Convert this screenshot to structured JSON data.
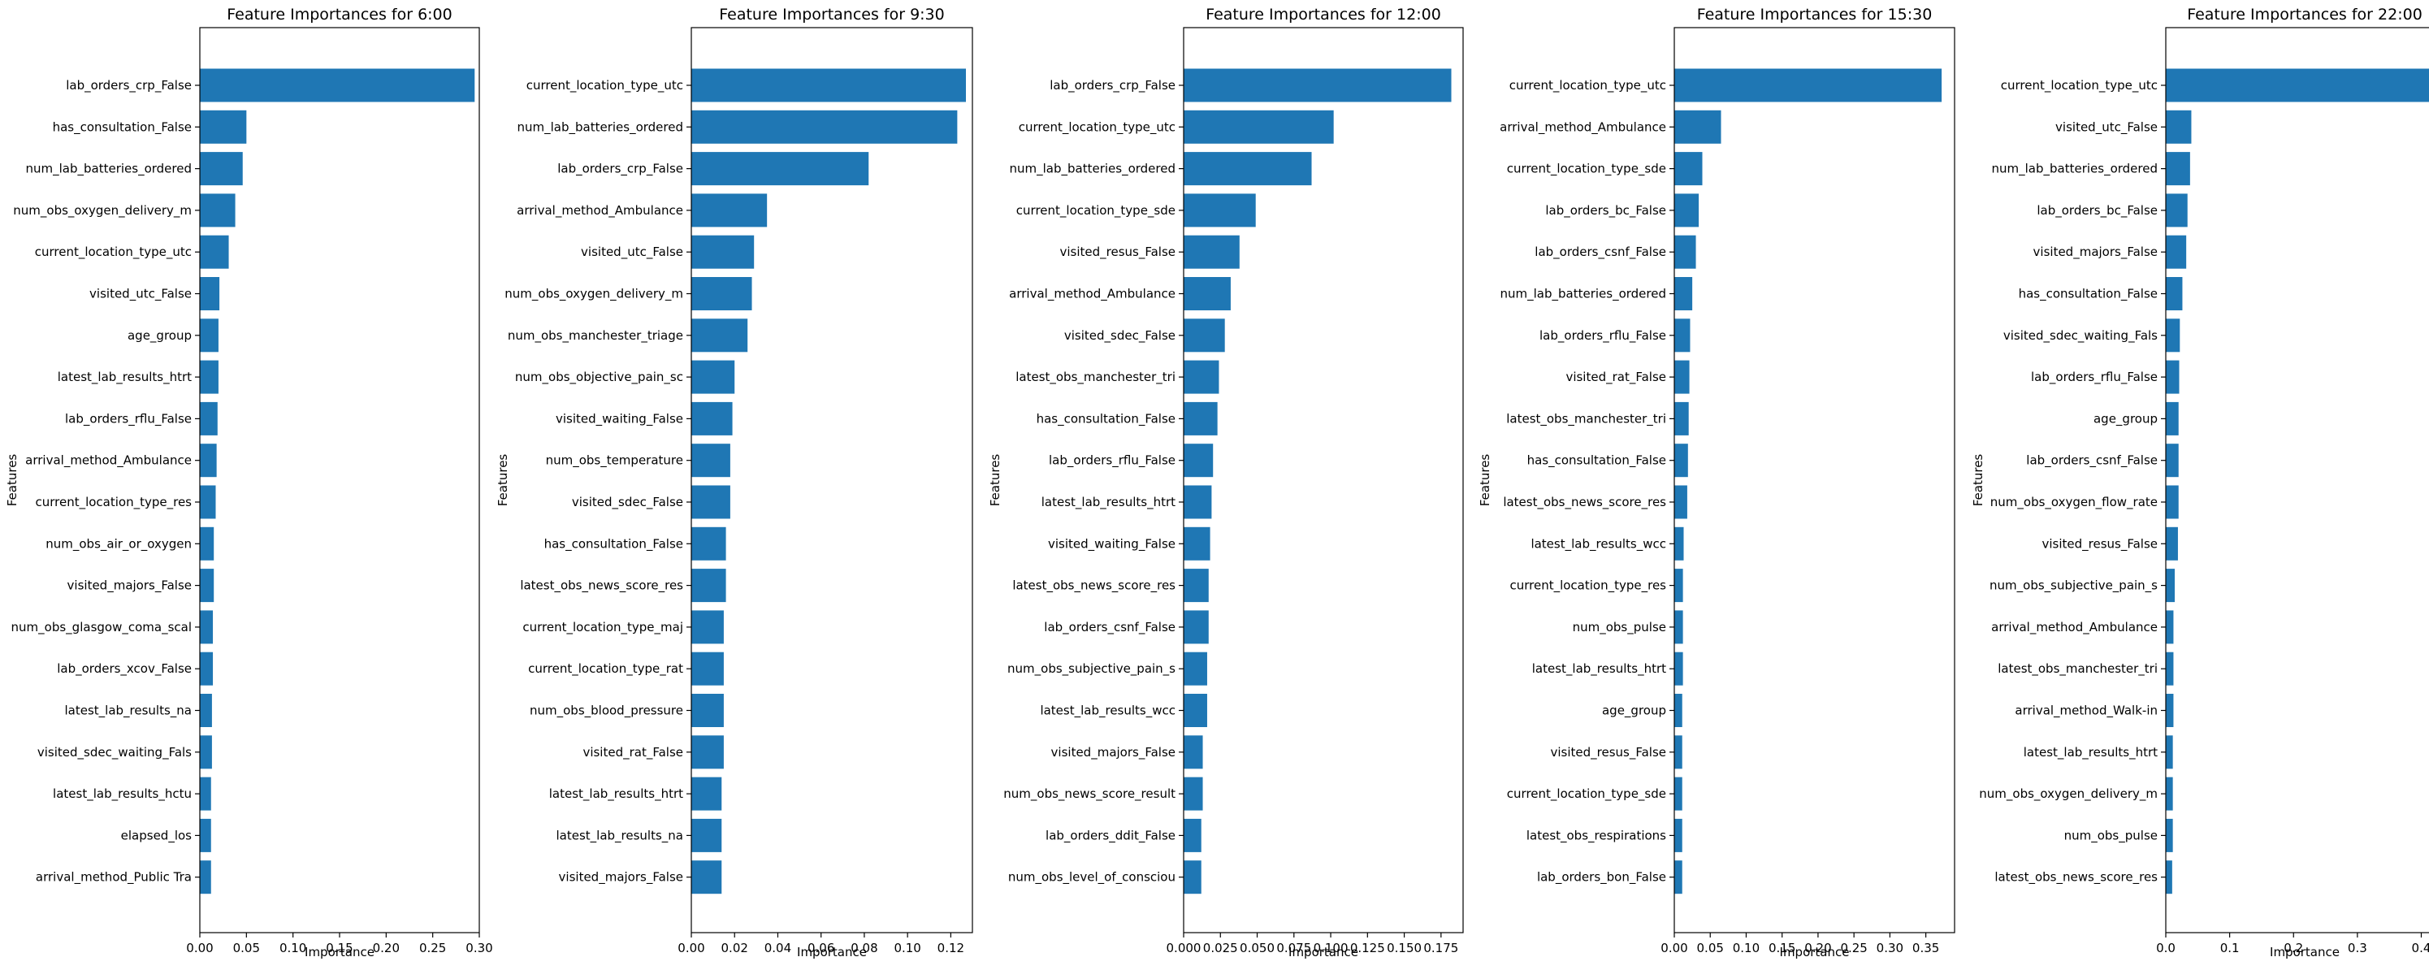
{
  "chart_data": [
    {
      "type": "bar",
      "orientation": "horizontal",
      "title": "Feature Importances for 6:00",
      "xlabel": "Importance",
      "ylabel": "Features",
      "xlim": [
        0,
        0.3
      ],
      "xticks": [
        0.0,
        0.05,
        0.1,
        0.15,
        0.2,
        0.25,
        0.3
      ],
      "xtick_labels": [
        "0.00",
        "0.05",
        "0.10",
        "0.15",
        "0.20",
        "0.25",
        "0.30"
      ],
      "color": "#1f77b4",
      "categories": [
        "lab_orders_crp_False",
        "has_consultation_False",
        "num_lab_batteries_ordered",
        "num_obs_oxygen_delivery_m",
        "current_location_type_utc",
        "visited_utc_False",
        "age_group",
        "latest_lab_results_htrt",
        "lab_orders_rflu_False",
        "arrival_method_Ambulance",
        "current_location_type_res",
        "num_obs_air_or_oxygen",
        "visited_majors_False",
        "num_obs_glasgow_coma_scal",
        "lab_orders_xcov_False",
        "latest_lab_results_na",
        "visited_sdec_waiting_Fals",
        "latest_lab_results_hctu",
        "elapsed_los",
        "arrival_method_Public Tra"
      ],
      "values": [
        0.295,
        0.05,
        0.046,
        0.038,
        0.031,
        0.021,
        0.02,
        0.02,
        0.019,
        0.018,
        0.017,
        0.015,
        0.015,
        0.014,
        0.014,
        0.013,
        0.013,
        0.012,
        0.012,
        0.012
      ]
    },
    {
      "type": "bar",
      "orientation": "horizontal",
      "title": "Feature Importances for 9:30",
      "xlabel": "Importance",
      "ylabel": "Features",
      "xlim": [
        0,
        0.13
      ],
      "xticks": [
        0.0,
        0.02,
        0.04,
        0.06,
        0.08,
        0.1,
        0.12
      ],
      "xtick_labels": [
        "0.00",
        "0.02",
        "0.04",
        "0.06",
        "0.08",
        "0.10",
        "0.12"
      ],
      "color": "#1f77b4",
      "categories": [
        "current_location_type_utc",
        "num_lab_batteries_ordered",
        "lab_orders_crp_False",
        "arrival_method_Ambulance",
        "visited_utc_False",
        "num_obs_oxygen_delivery_m",
        "num_obs_manchester_triage",
        "num_obs_objective_pain_sc",
        "visited_waiting_False",
        "num_obs_temperature",
        "visited_sdec_False",
        "has_consultation_False",
        "latest_obs_news_score_res",
        "current_location_type_maj",
        "current_location_type_rat",
        "num_obs_blood_pressure",
        "visited_rat_False",
        "latest_lab_results_htrt",
        "latest_lab_results_na",
        "visited_majors_False"
      ],
      "values": [
        0.127,
        0.123,
        0.082,
        0.035,
        0.029,
        0.028,
        0.026,
        0.02,
        0.019,
        0.018,
        0.018,
        0.016,
        0.016,
        0.015,
        0.015,
        0.015,
        0.015,
        0.014,
        0.014,
        0.014
      ]
    },
    {
      "type": "bar",
      "orientation": "horizontal",
      "title": "Feature Importances for 12:00",
      "xlabel": "Importance",
      "ylabel": "Features",
      "xlim": [
        0,
        0.19
      ],
      "xticks": [
        0.0,
        0.025,
        0.05,
        0.075,
        0.1,
        0.125,
        0.15,
        0.175
      ],
      "xtick_labels": [
        "0.000",
        "0.025",
        "0.050",
        "0.075",
        "0.100",
        "0.125",
        "0.150",
        "0.175"
      ],
      "color": "#1f77b4",
      "categories": [
        "lab_orders_crp_False",
        "current_location_type_utc",
        "num_lab_batteries_ordered",
        "current_location_type_sde",
        "visited_resus_False",
        "arrival_method_Ambulance",
        "visited_sdec_False",
        "latest_obs_manchester_tri",
        "has_consultation_False",
        "lab_orders_rflu_False",
        "latest_lab_results_htrt",
        "visited_waiting_False",
        "latest_obs_news_score_res",
        "lab_orders_csnf_False",
        "num_obs_subjective_pain_s",
        "latest_lab_results_wcc",
        "visited_majors_False",
        "num_obs_news_score_result",
        "lab_orders_ddit_False",
        "num_obs_level_of_consciou"
      ],
      "values": [
        0.182,
        0.102,
        0.087,
        0.049,
        0.038,
        0.032,
        0.028,
        0.024,
        0.023,
        0.02,
        0.019,
        0.018,
        0.017,
        0.017,
        0.016,
        0.016,
        0.013,
        0.013,
        0.012,
        0.012
      ]
    },
    {
      "type": "bar",
      "orientation": "horizontal",
      "title": "Feature Importances for 15:30",
      "xlabel": "Importance",
      "ylabel": "Features",
      "xlim": [
        0,
        0.39
      ],
      "xticks": [
        0.0,
        0.05,
        0.1,
        0.15,
        0.2,
        0.25,
        0.3,
        0.35
      ],
      "xtick_labels": [
        "0.00",
        "0.05",
        "0.10",
        "0.15",
        "0.20",
        "0.25",
        "0.30",
        "0.35"
      ],
      "color": "#1f77b4",
      "categories": [
        "current_location_type_utc",
        "arrival_method_Ambulance",
        "current_location_type_sde",
        "lab_orders_bc_False",
        "lab_orders_csnf_False",
        "num_lab_batteries_ordered",
        "lab_orders_rflu_False",
        "visited_rat_False",
        "latest_obs_manchester_tri",
        "has_consultation_False",
        "latest_obs_news_score_res",
        "latest_lab_results_wcc",
        "current_location_type_res",
        "num_obs_pulse",
        "latest_lab_results_htrt",
        "age_group",
        "visited_resus_False",
        "current_location_type_sde",
        "latest_obs_respirations",
        "lab_orders_bon_False"
      ],
      "values": [
        0.372,
        0.065,
        0.039,
        0.034,
        0.03,
        0.025,
        0.022,
        0.021,
        0.02,
        0.019,
        0.018,
        0.013,
        0.012,
        0.012,
        0.012,
        0.011,
        0.011,
        0.011,
        0.011,
        0.011
      ]
    },
    {
      "type": "bar",
      "orientation": "horizontal",
      "title": "Feature Importances for 22:00",
      "xlabel": "Importance",
      "ylabel": "Features",
      "xlim": [
        0,
        0.435
      ],
      "xticks": [
        0.0,
        0.1,
        0.2,
        0.3,
        0.4
      ],
      "xtick_labels": [
        "0.0",
        "0.1",
        "0.2",
        "0.3",
        "0.4"
      ],
      "color": "#1f77b4",
      "categories": [
        "current_location_type_utc",
        "visited_utc_False",
        "num_lab_batteries_ordered",
        "lab_orders_bc_False",
        "visited_majors_False",
        "has_consultation_False",
        "visited_sdec_waiting_Fals",
        "lab_orders_rflu_False",
        "age_group",
        "lab_orders_csnf_False",
        "num_obs_oxygen_flow_rate",
        "visited_resus_False",
        "num_obs_subjective_pain_s",
        "arrival_method_Ambulance",
        "latest_obs_manchester_tri",
        "arrival_method_Walk-in",
        "latest_lab_results_htrt",
        "num_obs_oxygen_delivery_m",
        "num_obs_pulse",
        "latest_obs_news_score_res"
      ],
      "values": [
        0.414,
        0.04,
        0.038,
        0.034,
        0.032,
        0.026,
        0.022,
        0.021,
        0.02,
        0.02,
        0.02,
        0.019,
        0.014,
        0.012,
        0.012,
        0.012,
        0.011,
        0.011,
        0.011,
        0.01
      ]
    }
  ]
}
